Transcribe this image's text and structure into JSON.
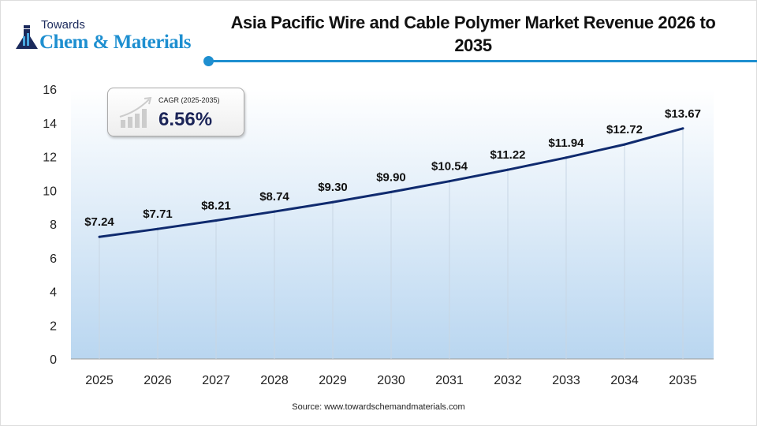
{
  "logo": {
    "line1": "Towards",
    "line2": "Chem & Materials"
  },
  "chart_data": {
    "type": "line",
    "title": "Asia Pacific Wire and Cable Polymer Market Revenue 2026 to 2035",
    "categories": [
      "2025",
      "2026",
      "2027",
      "2028",
      "2029",
      "2030",
      "2031",
      "2032",
      "2033",
      "2034",
      "2035"
    ],
    "values": [
      7.24,
      7.71,
      8.21,
      8.74,
      9.3,
      9.9,
      10.54,
      11.22,
      11.94,
      12.72,
      13.67
    ],
    "data_labels": [
      "$7.24",
      "$7.71",
      "$8.21",
      "$8.74",
      "$9.30",
      "$9.90",
      "$10.54",
      "$11.22",
      "$11.94",
      "$12.72",
      "$13.67"
    ],
    "ylim": [
      0,
      16
    ],
    "yticks": [
      0,
      2,
      4,
      6,
      8,
      10,
      12,
      14,
      16
    ],
    "grid": false,
    "line_color": "#0f2a6e"
  },
  "cagr": {
    "label": "CAGR (2025-2035)",
    "value": "6.56%"
  },
  "source": "Source: www.towardschemandmaterials.com"
}
